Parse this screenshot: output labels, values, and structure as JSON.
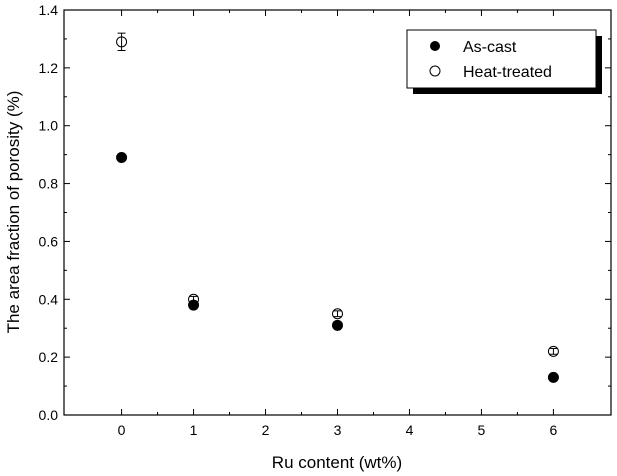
{
  "chart_data": {
    "type": "scatter",
    "title": "",
    "xlabel": "Ru content (wt%)",
    "ylabel": "The area fraction of porosity (%)",
    "xlim": [
      -0.8,
      6.8
    ],
    "ylim": [
      0.0,
      1.4
    ],
    "xticks": [
      0,
      1,
      2,
      3,
      4,
      5,
      6
    ],
    "xtick_labels": [
      "0",
      "1",
      "2",
      "3",
      "4",
      "5",
      "6"
    ],
    "yticks": [
      0.0,
      0.2,
      0.4,
      0.6,
      0.8,
      1.0,
      1.2,
      1.4
    ],
    "ytick_labels": [
      "0.0",
      "0.2",
      "0.4",
      "0.6",
      "0.8",
      "1.0",
      "1.2",
      "1.4"
    ],
    "grid": false,
    "legend_position": "top-right",
    "series": [
      {
        "name": "As-cast",
        "marker": "filled-circle",
        "color": "#000000",
        "x": [
          0,
          1,
          3,
          6
        ],
        "y": [
          0.89,
          0.38,
          0.31,
          0.13
        ],
        "yerr": [
          0,
          0,
          0,
          0
        ]
      },
      {
        "name": "Heat-treated",
        "marker": "open-circle",
        "color": "#000000",
        "x": [
          0,
          1,
          3,
          6
        ],
        "y": [
          1.29,
          0.4,
          0.35,
          0.22
        ],
        "yerr": [
          0.03,
          0.01,
          0.01,
          0.01
        ]
      }
    ]
  }
}
